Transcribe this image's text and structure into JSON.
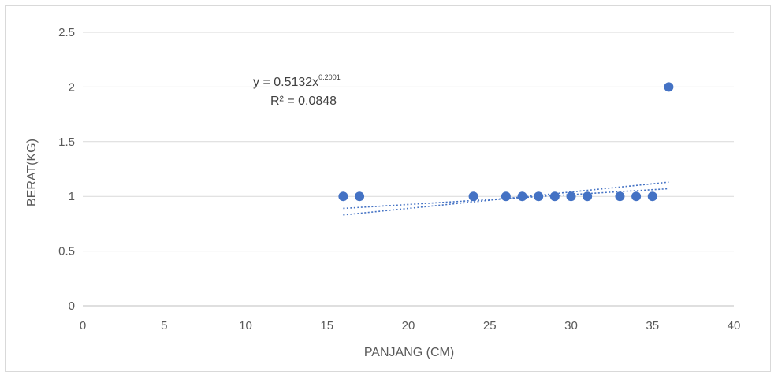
{
  "chart_data": {
    "type": "scatter",
    "title": "",
    "xlabel": "PANJANG (CM)",
    "ylabel": "BERAT(KG)",
    "xlim": [
      0,
      40
    ],
    "ylim": [
      0,
      2.5
    ],
    "x_ticks": [
      "0",
      "5",
      "10",
      "15",
      "20",
      "25",
      "30",
      "35",
      "40"
    ],
    "y_ticks": [
      "0",
      "0.5",
      "1",
      "1.5",
      "2",
      "2.5"
    ],
    "grid": "horizontal",
    "legend": "none",
    "series": [
      {
        "color": "#4472c4",
        "points": [
          {
            "x": 16,
            "y": 1
          },
          {
            "x": 17,
            "y": 1
          },
          {
            "x": 24,
            "y": 1
          },
          {
            "x": 26,
            "y": 1
          },
          {
            "x": 27,
            "y": 1
          },
          {
            "x": 28,
            "y": 1
          },
          {
            "x": 29,
            "y": 1
          },
          {
            "x": 30,
            "y": 1
          },
          {
            "x": 31,
            "y": 1
          },
          {
            "x": 33,
            "y": 1
          },
          {
            "x": 34,
            "y": 1
          },
          {
            "x": 35,
            "y": 1
          },
          {
            "x": 36,
            "y": 2
          }
        ]
      }
    ],
    "trendlines": [
      {
        "type": "linear",
        "style": "dotted",
        "from": {
          "x": 16,
          "y": 0.83
        },
        "to": {
          "x": 36,
          "y": 1.13
        }
      },
      {
        "type": "power",
        "style": "dotted",
        "from": {
          "x": 16,
          "y": 0.89
        },
        "to": {
          "x": 36,
          "y": 1.07
        }
      }
    ],
    "annotation": {
      "equation_base": "y = 0.5132x",
      "equation_exponent": "0.2001",
      "r_squared": "R² = 0.0848"
    }
  }
}
